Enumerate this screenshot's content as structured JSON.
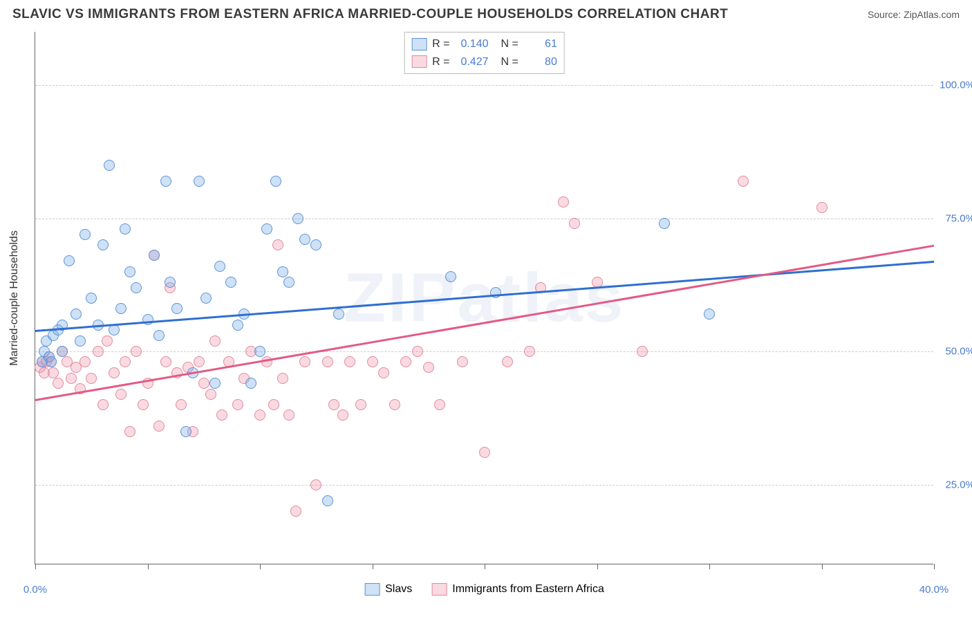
{
  "title": "SLAVIC VS IMMIGRANTS FROM EASTERN AFRICA MARRIED-COUPLE HOUSEHOLDS CORRELATION CHART",
  "source": "Source: ZipAtlas.com",
  "ylabel": "Married-couple Households",
  "watermark": "ZIPatlas",
  "chart": {
    "type": "scatter",
    "xlim": [
      0,
      40
    ],
    "ylim": [
      10,
      110
    ],
    "xtick_positions": [
      0,
      5,
      10,
      15,
      20,
      25,
      30,
      35,
      40
    ],
    "xtick_labels": {
      "0": "0.0%",
      "40": "40.0%"
    },
    "ytick_positions": [
      25,
      50,
      75,
      100
    ],
    "ytick_labels": {
      "25": "25.0%",
      "50": "50.0%",
      "75": "75.0%",
      "100": "100.0%"
    },
    "ytick_color": "#4a7bd0",
    "xtick_color": "#4a7bd0",
    "grid_color": "#cccccc",
    "background": "#ffffff"
  },
  "series": [
    {
      "name": "Slavs",
      "fill": "rgba(120,170,230,0.35)",
      "stroke": "#5a95d8",
      "line_color": "#2f6fd0",
      "R": "0.140",
      "N": "61",
      "trend": {
        "x1": 0,
        "y1": 54,
        "x2": 40,
        "y2": 67
      },
      "points": [
        [
          0.3,
          48
        ],
        [
          0.4,
          50
        ],
        [
          0.5,
          52
        ],
        [
          0.6,
          49
        ],
        [
          0.7,
          48
        ],
        [
          0.8,
          53
        ],
        [
          1.0,
          54
        ],
        [
          1.2,
          50
        ],
        [
          1.2,
          55
        ],
        [
          1.5,
          67
        ],
        [
          1.8,
          57
        ],
        [
          2.0,
          52
        ],
        [
          2.2,
          72
        ],
        [
          2.5,
          60
        ],
        [
          2.8,
          55
        ],
        [
          3.0,
          70
        ],
        [
          3.3,
          85
        ],
        [
          3.5,
          54
        ],
        [
          3.8,
          58
        ],
        [
          4.0,
          73
        ],
        [
          4.2,
          65
        ],
        [
          4.5,
          62
        ],
        [
          5.0,
          56
        ],
        [
          5.3,
          68
        ],
        [
          5.5,
          53
        ],
        [
          5.8,
          82
        ],
        [
          6.0,
          63
        ],
        [
          6.3,
          58
        ],
        [
          6.7,
          35
        ],
        [
          7.0,
          46
        ],
        [
          7.3,
          82
        ],
        [
          7.6,
          60
        ],
        [
          8.0,
          44
        ],
        [
          8.2,
          66
        ],
        [
          8.7,
          63
        ],
        [
          9.0,
          55
        ],
        [
          9.3,
          57
        ],
        [
          9.6,
          44
        ],
        [
          10.0,
          50
        ],
        [
          10.3,
          73
        ],
        [
          10.7,
          82
        ],
        [
          11.0,
          65
        ],
        [
          11.3,
          63
        ],
        [
          11.7,
          75
        ],
        [
          12.0,
          71
        ],
        [
          12.5,
          70
        ],
        [
          13.0,
          22
        ],
        [
          13.5,
          57
        ],
        [
          18.5,
          64
        ],
        [
          20.5,
          61
        ],
        [
          28.0,
          74
        ],
        [
          30.0,
          57
        ]
      ]
    },
    {
      "name": "Immigrants from Eastern Africa",
      "fill": "rgba(240,150,170,0.35)",
      "stroke": "#e08aa0",
      "line_color": "#e35a85",
      "R": "0.427",
      "N": "80",
      "trend": {
        "x1": 0,
        "y1": 41,
        "x2": 40,
        "y2": 70
      },
      "points": [
        [
          0.2,
          47
        ],
        [
          0.3,
          48
        ],
        [
          0.4,
          46
        ],
        [
          0.5,
          48
        ],
        [
          0.6,
          49
        ],
        [
          0.7,
          48
        ],
        [
          0.8,
          46
        ],
        [
          1.0,
          44
        ],
        [
          1.2,
          50
        ],
        [
          1.4,
          48
        ],
        [
          1.6,
          45
        ],
        [
          1.8,
          47
        ],
        [
          2.0,
          43
        ],
        [
          2.2,
          48
        ],
        [
          2.5,
          45
        ],
        [
          2.8,
          50
        ],
        [
          3.0,
          40
        ],
        [
          3.2,
          52
        ],
        [
          3.5,
          46
        ],
        [
          3.8,
          42
        ],
        [
          4.0,
          48
        ],
        [
          4.2,
          35
        ],
        [
          4.5,
          50
        ],
        [
          4.8,
          40
        ],
        [
          5.0,
          44
        ],
        [
          5.3,
          68
        ],
        [
          5.5,
          36
        ],
        [
          5.8,
          48
        ],
        [
          6.0,
          62
        ],
        [
          6.3,
          46
        ],
        [
          6.5,
          40
        ],
        [
          6.8,
          47
        ],
        [
          7.0,
          35
        ],
        [
          7.3,
          48
        ],
        [
          7.5,
          44
        ],
        [
          7.8,
          42
        ],
        [
          8.0,
          52
        ],
        [
          8.3,
          38
        ],
        [
          8.6,
          48
        ],
        [
          9.0,
          40
        ],
        [
          9.3,
          45
        ],
        [
          9.6,
          50
        ],
        [
          10.0,
          38
        ],
        [
          10.3,
          48
        ],
        [
          10.6,
          40
        ],
        [
          10.8,
          70
        ],
        [
          11.0,
          45
        ],
        [
          11.3,
          38
        ],
        [
          11.6,
          20
        ],
        [
          12.0,
          48
        ],
        [
          12.5,
          25
        ],
        [
          13.0,
          48
        ],
        [
          13.3,
          40
        ],
        [
          13.7,
          38
        ],
        [
          14.0,
          48
        ],
        [
          14.5,
          40
        ],
        [
          15.0,
          48
        ],
        [
          15.5,
          46
        ],
        [
          16.0,
          40
        ],
        [
          16.5,
          48
        ],
        [
          17.0,
          50
        ],
        [
          17.5,
          47
        ],
        [
          18.0,
          40
        ],
        [
          19.0,
          48
        ],
        [
          20.0,
          31
        ],
        [
          21.0,
          48
        ],
        [
          22.0,
          50
        ],
        [
          22.5,
          62
        ],
        [
          23.5,
          78
        ],
        [
          24.0,
          74
        ],
        [
          25.0,
          63
        ],
        [
          27.0,
          50
        ],
        [
          31.5,
          82
        ],
        [
          35.0,
          77
        ]
      ]
    }
  ],
  "legend_top": {
    "r_label": "R =",
    "n_label": "N ="
  },
  "legend_bottom": {
    "series1": "Slavs",
    "series2": "Immigrants from Eastern Africa"
  }
}
